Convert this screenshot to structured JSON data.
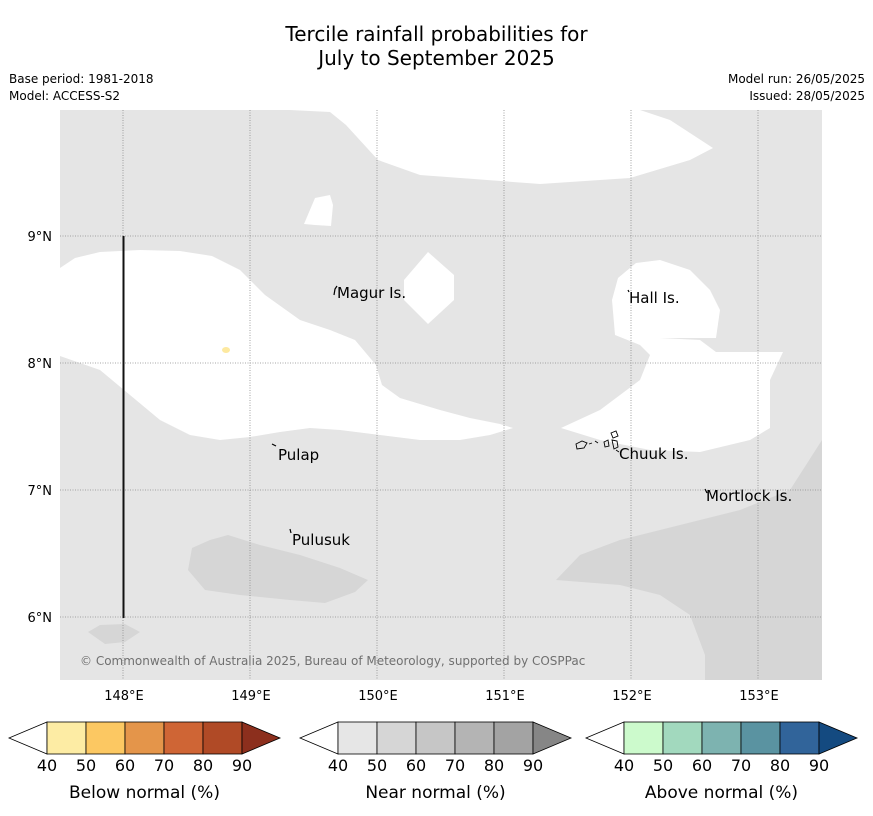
{
  "title_line1": "Tercile rainfall probabilities for",
  "title_line2": "July to September 2025",
  "meta_left": {
    "base_period": "Base period: 1981-2018",
    "model": "Model: ACCESS-S2"
  },
  "meta_right": {
    "model_run": "Model run: 26/05/2025",
    "issued": "Issued: 28/05/2025"
  },
  "map": {
    "lon_ticks": [
      "148°E",
      "149°E",
      "150°E",
      "151°E",
      "152°E",
      "153°E"
    ],
    "lat_ticks": [
      "9°N",
      "8°N",
      "7°N",
      "6°N"
    ],
    "places": [
      "Magur Is.",
      "Hall Is.",
      "Pulap",
      "Chuuk Is.",
      "Mortlock Is.",
      "Pulusuk"
    ],
    "copyright": "© Commonwealth of Australia 2025, Bureau of Meteorology, supported by COSPPac",
    "colors": {
      "background": "#e5e5e5",
      "near_normal_60": "#d6d6d6",
      "white": "#ffffff"
    }
  },
  "colorbars": [
    {
      "label": "Below normal (%)",
      "ticks": [
        "40",
        "50",
        "60",
        "70",
        "80",
        "90"
      ],
      "colors": [
        "#ffffff",
        "#fdeca4",
        "#fcc862",
        "#e4954a",
        "#cf6535",
        "#b04a26",
        "#8c2f1d"
      ]
    },
    {
      "label": "Near normal (%)",
      "ticks": [
        "40",
        "50",
        "60",
        "70",
        "80",
        "90"
      ],
      "colors": [
        "#ffffff",
        "#e6e6e6",
        "#d6d6d6",
        "#c6c6c6",
        "#b4b4b4",
        "#a3a3a3",
        "#868686"
      ]
    },
    {
      "label": "Above normal (%)",
      "ticks": [
        "40",
        "50",
        "60",
        "70",
        "80",
        "90"
      ],
      "colors": [
        "#ffffff",
        "#ccfacc",
        "#a2d9be",
        "#7db3b0",
        "#5a93a1",
        "#31649a",
        "#144a80"
      ]
    }
  ]
}
